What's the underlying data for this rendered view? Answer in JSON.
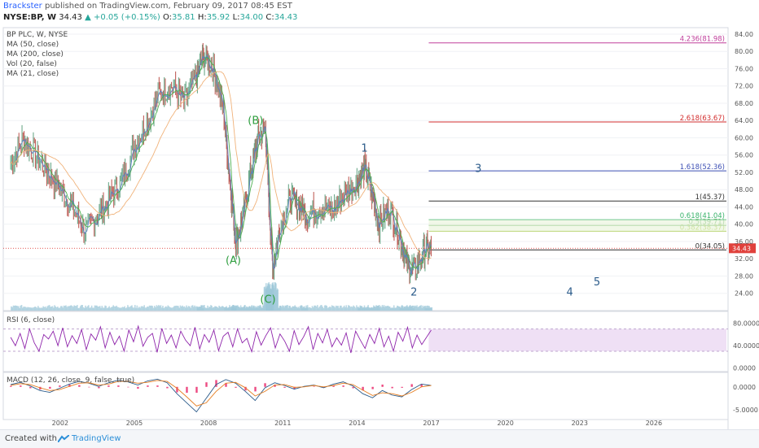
{
  "header": {
    "author": "Brackster",
    "published": "published on TradingView.com, February 09, 2017 08:45 EST",
    "symbol": "NYSE:BP, W",
    "last": "34.43",
    "change": "+0.05 (+0.15%)",
    "ohlc": {
      "o": "35.81",
      "h": "35.92",
      "l": "34.00",
      "c": "34.43"
    }
  },
  "indicators": {
    "title": "BP PLC, W, NYSE",
    "ma50": "MA (50, close)",
    "ma200": "MA (200, close)",
    "vol": "Vol (20, false)",
    "ma21": "MA (21, close)",
    "rsi": "RSI (6, close)",
    "macd": "MACD (12, 26, close, 9, false, true)"
  },
  "footer": {
    "created": "Created with",
    "brand": "TradingView"
  },
  "colors": {
    "price_up": "#6ca98a",
    "price_down": "#c0605a",
    "ma50": "#4caf50",
    "ma200": "#f0b27a",
    "ma21": "#5b7fbf",
    "rsi": "#8e24aa",
    "wave_green": "#2e9e3e",
    "wave_blue": "#2b5b8a",
    "price_tag": "#e0413c"
  },
  "chart_data": [
    {
      "type": "line",
      "panel": "price",
      "x_ticks": [
        "2002",
        "2005",
        "2008",
        "2011",
        "2014",
        "2017",
        "2020",
        "2023",
        "2026"
      ],
      "x_tick_years": [
        2002,
        2005,
        2008,
        2011,
        2014,
        2017,
        2020,
        2023,
        2026
      ],
      "xlim": [
        1999.7,
        2029.0
      ],
      "y_ticks": [
        "84.00",
        "80.00",
        "76.00",
        "72.00",
        "68.00",
        "64.00",
        "60.00",
        "56.00",
        "52.00",
        "48.00",
        "44.00",
        "40.00",
        "36.00",
        "32.00",
        "28.00",
        "24.00"
      ],
      "y_tick_values": [
        84,
        80,
        76,
        72,
        68,
        64,
        60,
        56,
        52,
        48,
        44,
        40,
        36,
        32,
        28,
        24
      ],
      "ylim": [
        20.0,
        85.5
      ],
      "last_price": "34.43",
      "last_price_value": 34.43,
      "series": [
        {
          "x": [
            2000.0,
            2000.5,
            2001.0,
            2001.5,
            2002.0,
            2002.5,
            2003.0,
            2003.5,
            2004.0,
            2004.5,
            2005.0,
            2005.5,
            2006.0,
            2006.5,
            2007.0,
            2007.5,
            2007.8,
            2008.2,
            2008.6,
            2008.9,
            2009.1,
            2009.4,
            2009.7,
            2010.0,
            2010.3,
            2010.45,
            2010.6,
            2010.9,
            2011.3,
            2011.7,
            2012.0,
            2012.5,
            2013.0,
            2013.5,
            2014.0,
            2014.3,
            2014.6,
            2014.9,
            2015.3,
            2015.7,
            2016.0,
            2016.3,
            2016.7,
            2017.0
          ],
          "values": [
            54,
            60,
            56,
            52,
            48,
            44,
            38,
            42,
            46,
            50,
            58,
            64,
            70,
            72,
            68,
            74,
            79,
            76,
            66,
            48,
            36,
            42,
            52,
            60,
            62,
            44,
            30,
            40,
            46,
            44,
            42,
            44,
            43,
            47,
            50,
            53,
            47,
            40,
            44,
            38,
            31,
            29,
            34,
            34.43
          ]
        }
      ],
      "fib_levels": [
        {
          "ratio": "0.382",
          "value": 38.37
        },
        {
          "ratio": "0.5",
          "value": 39.71
        },
        {
          "ratio": "0.618",
          "value": 41.04
        },
        {
          "ratio": "1",
          "value": 45.37
        },
        {
          "ratio": "1.618",
          "value": 52.36
        },
        {
          "ratio": "2.618",
          "value": 63.67
        },
        {
          "ratio": "4.236",
          "value": 81.98
        },
        {
          "ratio": "0",
          "value": 34.05
        }
      ],
      "wave_labels": [
        {
          "text": "(A)",
          "x": 2009.0,
          "y": 30.8
        },
        {
          "text": "(B)",
          "x": 2009.9,
          "y": 63.2
        },
        {
          "text": "(C)",
          "x": 2010.4,
          "y": 21.8
        },
        {
          "text": "1",
          "x": 2014.3,
          "y": 56.8
        },
        {
          "text": "2",
          "x": 2016.3,
          "y": 23.5
        },
        {
          "text": "3",
          "x": 2018.9,
          "y": 52.1
        },
        {
          "text": "4",
          "x": 2022.6,
          "y": 23.5
        },
        {
          "text": "5",
          "x": 2023.7,
          "y": 25.8
        }
      ]
    },
    {
      "type": "line",
      "panel": "rsi",
      "y_ticks": [
        "80.0000",
        "40.0000",
        "0.0000"
      ],
      "y_tick_values": [
        80,
        40,
        0
      ],
      "ylim": [
        -5,
        100
      ],
      "band": [
        30,
        70
      ],
      "series": [
        {
          "name": "RSI",
          "values": [
            55,
            40,
            62,
            35,
            70,
            45,
            30,
            60,
            52,
            66,
            40,
            72,
            38,
            58,
            44,
            69,
            33,
            61,
            50,
            74,
            36,
            64,
            42,
            57,
            30,
            68,
            47,
            75,
            39,
            55,
            62,
            28,
            71,
            44,
            59,
            36,
            66,
            50,
            40,
            73,
            34,
            60,
            46,
            68,
            31,
            57,
            64,
            38,
            70,
            45,
            53,
            29,
            65,
            41,
            58,
            72,
            36,
            61,
            48,
            30,
            67,
            42,
            56,
            74,
            33,
            62,
            45,
            69,
            38,
            54,
            41,
            63,
            27,
            66,
            50,
            35,
            60,
            44,
            71,
            38,
            57,
            30,
            64,
            48,
            73,
            36,
            59,
            42,
            55,
            68
          ]
        }
      ]
    },
    {
      "type": "line",
      "panel": "macd",
      "y_ticks": [
        "0.0000",
        "-5.0000"
      ],
      "y_tick_values": [
        0,
        -5
      ],
      "ylim": [
        -7,
        3
      ],
      "series": [
        {
          "name": "MACD",
          "values": [
            0.5,
            1.0,
            0.2,
            -0.8,
            -1.2,
            -0.3,
            0.6,
            1.2,
            0.8,
            0.1,
            0.9,
            1.5,
            1.1,
            0.4,
            1.3,
            1.7,
            0.9,
            -1.5,
            -3.5,
            -5.5,
            -2.5,
            0.5,
            1.6,
            0.8,
            -1.0,
            -3.0,
            -0.2,
            0.9,
            0.3,
            -0.5,
            0.1,
            0.4,
            -0.2,
            0.6,
            1.1,
            0.2,
            -1.5,
            -2.4,
            -0.8,
            -1.8,
            -2.2,
            -0.6,
            0.6,
            0.3
          ]
        },
        {
          "name": "Signal",
          "values": [
            0.3,
            0.7,
            0.5,
            -0.2,
            -0.8,
            -0.6,
            0.1,
            0.8,
            0.9,
            0.4,
            0.6,
            1.2,
            1.2,
            0.8,
            1.0,
            1.4,
            1.2,
            -0.3,
            -2.2,
            -4.2,
            -3.5,
            -1.0,
            0.8,
            1.0,
            -0.2,
            -2.0,
            -1.0,
            0.4,
            0.5,
            -0.1,
            0.0,
            0.3,
            0.0,
            0.3,
            0.8,
            0.5,
            -0.7,
            -1.9,
            -1.3,
            -1.5,
            -2.0,
            -1.2,
            0.0,
            0.3
          ]
        }
      ]
    }
  ]
}
